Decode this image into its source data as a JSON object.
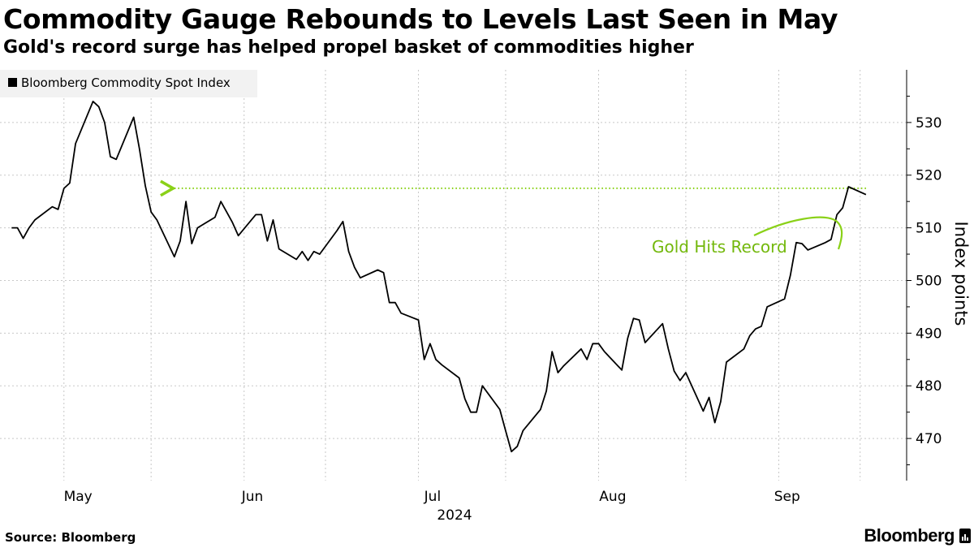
{
  "header": {
    "title": "Commodity Gauge Rebounds to Levels Last Seen in May",
    "subtitle": "Gold's record surge has helped propel basket of commodities higher"
  },
  "footer": {
    "source": "Source: Bloomberg",
    "brand": "Bloomberg"
  },
  "colors": {
    "line": "#000000",
    "accent": "#8ad118",
    "grid": "#c8c8c8",
    "legend_bg": "#f2f2f2"
  },
  "chart_data": {
    "type": "line",
    "title": "Commodity Gauge Rebounds to Levels Last Seen in May",
    "subtitle": "Gold's record surge has helped propel basket of commodities higher",
    "xlabel": "2024",
    "ylabel": "Index points",
    "ylim": [
      462,
      540
    ],
    "yticks": [
      470,
      480,
      490,
      500,
      510,
      520,
      530
    ],
    "x_months": [
      "May",
      "Jun",
      "Jul",
      "Aug",
      "Sep"
    ],
    "x_year": "2024",
    "legend": "Bloomberg Commodity Spot Index",
    "grid": true,
    "series": [
      {
        "name": "Bloomberg Commodity Spot Index",
        "points": [
          [
            "2024-04-22",
            510.0
          ],
          [
            "2024-04-23",
            510.0
          ],
          [
            "2024-04-24",
            508.0
          ],
          [
            "2024-04-25",
            510.0
          ],
          [
            "2024-04-26",
            511.5
          ],
          [
            "2024-04-29",
            514.0
          ],
          [
            "2024-04-30",
            513.5
          ],
          [
            "2024-05-01",
            517.5
          ],
          [
            "2024-05-02",
            518.5
          ],
          [
            "2024-05-03",
            526.0
          ],
          [
            "2024-05-06",
            534.0
          ],
          [
            "2024-05-07",
            533.0
          ],
          [
            "2024-05-08",
            530.0
          ],
          [
            "2024-05-09",
            523.5
          ],
          [
            "2024-05-10",
            523.0
          ],
          [
            "2024-05-13",
            531.0
          ],
          [
            "2024-05-14",
            525.0
          ],
          [
            "2024-05-15",
            518.0
          ],
          [
            "2024-05-16",
            513.0
          ],
          [
            "2024-05-17",
            511.5
          ],
          [
            "2024-05-20",
            504.5
          ],
          [
            "2024-05-21",
            507.5
          ],
          [
            "2024-05-22",
            515.0
          ],
          [
            "2024-05-23",
            507.0
          ],
          [
            "2024-05-24",
            510.0
          ],
          [
            "2024-05-27",
            512.0
          ],
          [
            "2024-05-28",
            515.0
          ],
          [
            "2024-05-29",
            513.0
          ],
          [
            "2024-05-30",
            511.0
          ],
          [
            "2024-05-31",
            508.5
          ],
          [
            "2024-06-03",
            512.5
          ],
          [
            "2024-06-04",
            512.5
          ],
          [
            "2024-06-05",
            507.5
          ],
          [
            "2024-06-06",
            511.5
          ],
          [
            "2024-06-07",
            506.0
          ],
          [
            "2024-06-10",
            504.0
          ],
          [
            "2024-06-11",
            505.5
          ],
          [
            "2024-06-12",
            503.8
          ],
          [
            "2024-06-13",
            505.5
          ],
          [
            "2024-06-14",
            505.0
          ],
          [
            "2024-06-17",
            509.5
          ],
          [
            "2024-06-18",
            511.2
          ],
          [
            "2024-06-19",
            505.5
          ],
          [
            "2024-06-20",
            502.5
          ],
          [
            "2024-06-21",
            500.5
          ],
          [
            "2024-06-24",
            502.0
          ],
          [
            "2024-06-25",
            501.5
          ],
          [
            "2024-06-26",
            495.8
          ],
          [
            "2024-06-27",
            495.8
          ],
          [
            "2024-06-28",
            493.8
          ],
          [
            "2024-07-01",
            492.5
          ],
          [
            "2024-07-02",
            485.0
          ],
          [
            "2024-07-03",
            488.0
          ],
          [
            "2024-07-04",
            485.0
          ],
          [
            "2024-07-05",
            484.0
          ],
          [
            "2024-07-08",
            481.5
          ],
          [
            "2024-07-09",
            477.5
          ],
          [
            "2024-07-10",
            475.0
          ],
          [
            "2024-07-11",
            475.0
          ],
          [
            "2024-07-12",
            480.0
          ],
          [
            "2024-07-15",
            475.5
          ],
          [
            "2024-07-16",
            471.5
          ],
          [
            "2024-07-17",
            467.5
          ],
          [
            "2024-07-18",
            468.5
          ],
          [
            "2024-07-19",
            471.5
          ],
          [
            "2024-07-22",
            475.5
          ],
          [
            "2024-07-23",
            479.0
          ],
          [
            "2024-07-24",
            486.5
          ],
          [
            "2024-07-25",
            482.5
          ],
          [
            "2024-07-26",
            483.8
          ],
          [
            "2024-07-29",
            487.0
          ],
          [
            "2024-07-30",
            485.0
          ],
          [
            "2024-07-31",
            488.0
          ],
          [
            "2024-08-01",
            488.0
          ],
          [
            "2024-08-02",
            486.5
          ],
          [
            "2024-08-05",
            483.0
          ],
          [
            "2024-08-06",
            489.0
          ],
          [
            "2024-08-07",
            492.8
          ],
          [
            "2024-08-08",
            492.5
          ],
          [
            "2024-08-09",
            488.2
          ],
          [
            "2024-08-12",
            491.8
          ],
          [
            "2024-08-13",
            487.0
          ],
          [
            "2024-08-14",
            482.8
          ],
          [
            "2024-08-15",
            481.0
          ],
          [
            "2024-08-16",
            482.5
          ],
          [
            "2024-08-19",
            475.2
          ],
          [
            "2024-08-20",
            477.8
          ],
          [
            "2024-08-21",
            473.0
          ],
          [
            "2024-08-22",
            477.0
          ],
          [
            "2024-08-23",
            484.5
          ],
          [
            "2024-08-26",
            487.0
          ],
          [
            "2024-08-27",
            489.5
          ],
          [
            "2024-08-28",
            490.8
          ],
          [
            "2024-08-29",
            491.3
          ],
          [
            "2024-08-30",
            495.0
          ],
          [
            "2024-09-02",
            496.5
          ],
          [
            "2024-09-03",
            501.0
          ],
          [
            "2024-09-04",
            507.2
          ],
          [
            "2024-09-05",
            507.0
          ],
          [
            "2024-09-06",
            505.8
          ],
          [
            "2024-09-09",
            507.2
          ],
          [
            "2024-09-10",
            507.8
          ],
          [
            "2024-09-11",
            512.5
          ],
          [
            "2024-09-12",
            513.8
          ],
          [
            "2024-09-13",
            517.8
          ],
          [
            "2024-09-16",
            516.3
          ]
        ]
      }
    ],
    "annotations": [
      {
        "type": "reference_line",
        "value": 517.5,
        "from": "2024-05-17",
        "to": "2024-09-16",
        "style": "dotted-arrow"
      },
      {
        "type": "callout",
        "text": "Gold Hits Record",
        "target": [
          "2024-09-06",
          505.8
        ]
      }
    ]
  }
}
